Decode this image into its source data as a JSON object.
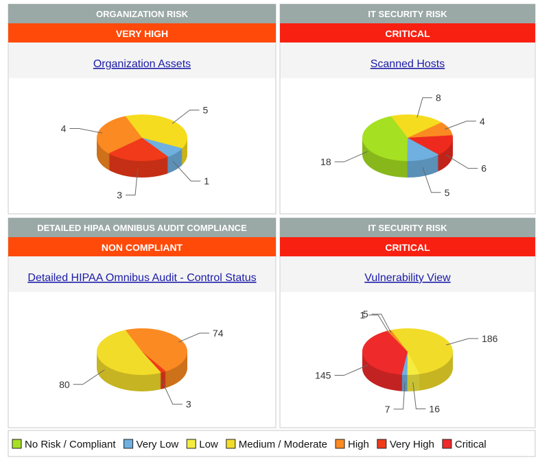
{
  "panels": [
    {
      "header": "ORGANIZATION RISK",
      "status": "VERY HIGH",
      "status_color": "#ff4a0a"
    },
    {
      "header": "IT SECURITY RISK",
      "status": "CRITICAL",
      "status_color": "#f82010"
    },
    {
      "header": "DETAILED HIPAA OMNIBUS AUDIT COMPLIANCE",
      "status": "NON COMPLIANT",
      "status_color": "#ff4a0a"
    },
    {
      "header": "IT SECURITY RISK",
      "status": "CRITICAL",
      "status_color": "#f82010"
    }
  ],
  "chart_data": [
    {
      "type": "pie",
      "title": "Organization Assets",
      "categories": [
        "Low",
        "Very Low",
        "Very High",
        "High"
      ],
      "values": [
        5,
        1,
        3,
        4
      ],
      "colors": [
        "#f6dc1e",
        "#6fb0e0",
        "#f03a1a",
        "#fb8a22"
      ]
    },
    {
      "type": "pie",
      "title": "Scanned Hosts",
      "categories": [
        "Low",
        "High",
        "Critical",
        "Very Low",
        "No Risk / Compliant"
      ],
      "values": [
        8,
        4,
        6,
        5,
        18
      ],
      "colors": [
        "#f6dc1e",
        "#fb8a22",
        "#ee2a1e",
        "#6fb0e0",
        "#a6e022"
      ]
    },
    {
      "type": "pie",
      "title": "Detailed HIPAA Omnibus Audit - Control Status",
      "categories": [
        "High",
        "Very High",
        "Medium / Moderate"
      ],
      "values": [
        74,
        3,
        80
      ],
      "colors": [
        "#fb8a22",
        "#f03a1a",
        "#f2dc2a"
      ]
    },
    {
      "type": "pie",
      "title": "Vulnerability View",
      "categories": [
        "Medium / Moderate",
        "Low",
        "Very Low",
        "Critical",
        "Very High",
        "High"
      ],
      "values": [
        186,
        16,
        7,
        145,
        1,
        5
      ],
      "colors": [
        "#f2dc2a",
        "#f6ec40",
        "#6fb0e0",
        "#ee2a2a",
        "#f03a1a",
        "#fb8a22"
      ]
    }
  ],
  "legend": {
    "items": [
      {
        "name": "No Risk / Compliant",
        "color": "#a6e022"
      },
      {
        "name": "Very Low",
        "color": "#6fb0e0"
      },
      {
        "name": "Low",
        "color": "#f6ec40"
      },
      {
        "name": "Medium / Moderate",
        "color": "#f2dc2a"
      },
      {
        "name": "High",
        "color": "#fb8a22"
      },
      {
        "name": "Very High",
        "color": "#f03a1a"
      },
      {
        "name": "Critical",
        "color": "#ee2a2a"
      }
    ]
  }
}
